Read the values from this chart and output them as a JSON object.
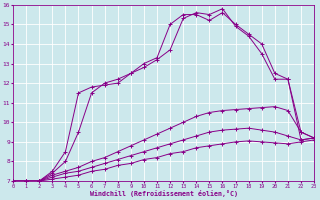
{
  "xlabel": "Windchill (Refroidissement éolien,°C)",
  "bg_color": "#cce8ec",
  "line_color": "#880088",
  "grid_color": "#ffffff",
  "xlim": [
    0,
    23
  ],
  "ylim": [
    7,
    16
  ],
  "xticks": [
    0,
    1,
    2,
    3,
    4,
    5,
    6,
    7,
    8,
    9,
    10,
    11,
    12,
    13,
    14,
    15,
    16,
    17,
    18,
    19,
    20,
    21,
    22,
    23
  ],
  "yticks": [
    7,
    8,
    9,
    10,
    11,
    12,
    13,
    14,
    15,
    16
  ],
  "lines": [
    {
      "x": [
        0,
        1,
        2,
        3,
        4,
        5,
        6,
        7,
        8,
        9,
        10,
        11,
        12,
        13,
        14,
        15,
        16,
        17,
        18,
        19,
        20,
        21,
        22,
        23
      ],
      "y": [
        7,
        7,
        7,
        7.1,
        7.2,
        7.3,
        7.5,
        7.6,
        7.8,
        7.9,
        8.1,
        8.2,
        8.4,
        8.5,
        8.7,
        8.8,
        8.9,
        9.0,
        9.05,
        9.0,
        8.95,
        8.9,
        9.0,
        9.1
      ]
    },
    {
      "x": [
        0,
        1,
        2,
        3,
        4,
        5,
        6,
        7,
        8,
        9,
        10,
        11,
        12,
        13,
        14,
        15,
        16,
        17,
        18,
        19,
        20,
        21,
        22,
        23
      ],
      "y": [
        7,
        7,
        7,
        7.2,
        7.4,
        7.5,
        7.7,
        7.9,
        8.1,
        8.3,
        8.5,
        8.7,
        8.9,
        9.1,
        9.3,
        9.5,
        9.6,
        9.65,
        9.7,
        9.6,
        9.5,
        9.3,
        9.1,
        9.2
      ]
    },
    {
      "x": [
        0,
        1,
        2,
        3,
        4,
        5,
        6,
        7,
        8,
        9,
        10,
        11,
        12,
        13,
        14,
        15,
        16,
        17,
        18,
        19,
        20,
        21,
        22,
        23
      ],
      "y": [
        7,
        7,
        7,
        7.3,
        7.5,
        7.7,
        8.0,
        8.2,
        8.5,
        8.8,
        9.1,
        9.4,
        9.7,
        10.0,
        10.3,
        10.5,
        10.6,
        10.65,
        10.7,
        10.75,
        10.8,
        10.6,
        9.5,
        9.2
      ]
    },
    {
      "x": [
        0,
        1,
        2,
        3,
        4,
        5,
        6,
        7,
        8,
        9,
        10,
        11,
        12,
        13,
        14,
        15,
        16,
        17,
        18,
        19,
        20,
        21,
        22,
        23
      ],
      "y": [
        7,
        7,
        7,
        7.5,
        8.5,
        11.5,
        11.8,
        11.9,
        12.0,
        12.5,
        13.0,
        13.3,
        15.0,
        15.5,
        15.5,
        15.2,
        15.6,
        15.0,
        14.5,
        14.0,
        12.5,
        12.2,
        9.1,
        9.2
      ]
    },
    {
      "x": [
        0,
        1,
        2,
        3,
        4,
        5,
        6,
        7,
        8,
        9,
        10,
        11,
        12,
        13,
        14,
        15,
        16,
        17,
        18,
        19,
        20,
        21,
        22,
        23
      ],
      "y": [
        7,
        7,
        7,
        7.4,
        8.0,
        9.5,
        11.5,
        12.0,
        12.2,
        12.5,
        12.8,
        13.2,
        13.7,
        15.3,
        15.6,
        15.5,
        15.8,
        14.9,
        14.4,
        13.5,
        12.2,
        12.2,
        9.5,
        9.2
      ]
    }
  ]
}
